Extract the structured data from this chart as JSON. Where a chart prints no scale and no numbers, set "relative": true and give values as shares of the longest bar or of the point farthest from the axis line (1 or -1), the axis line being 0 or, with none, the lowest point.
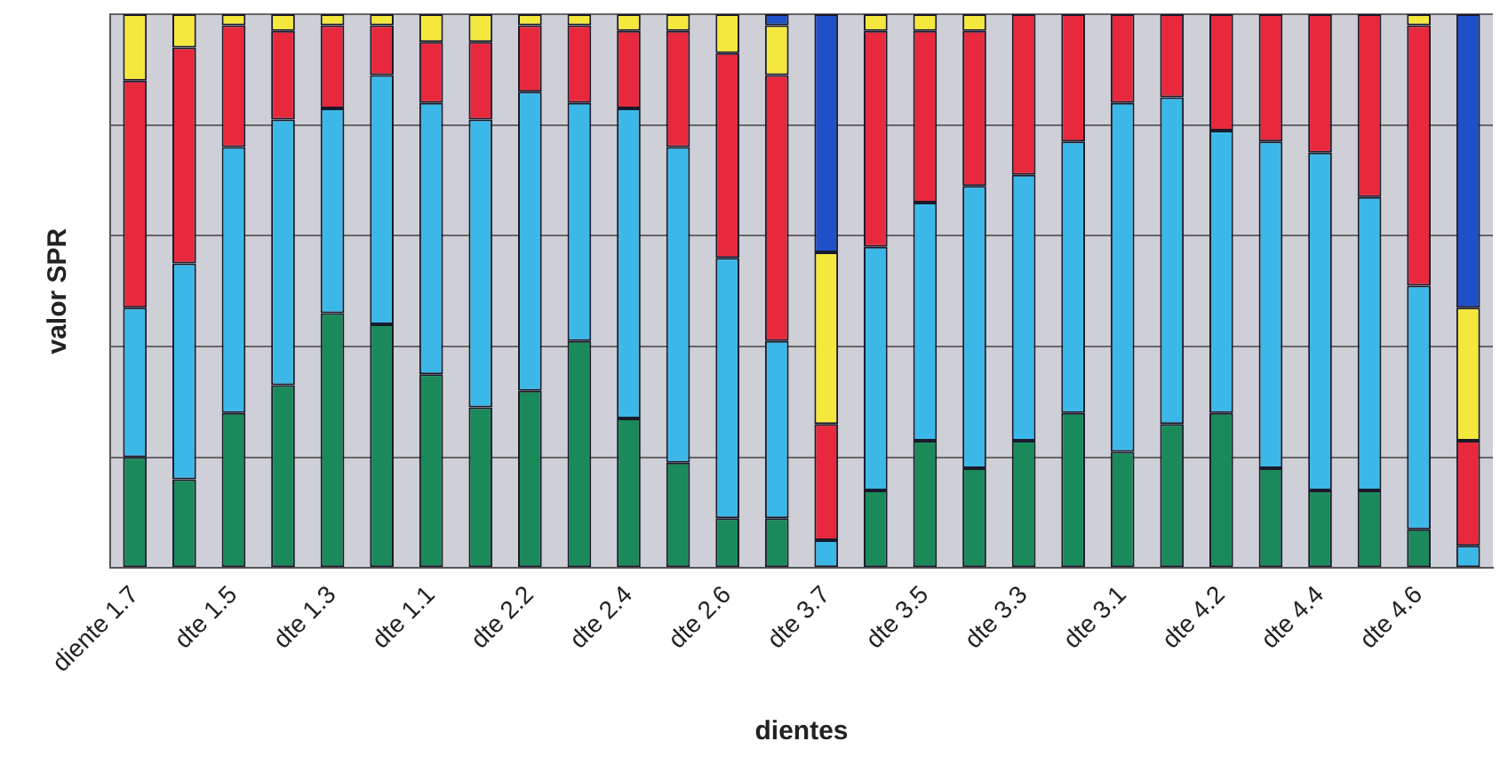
{
  "chart_data": {
    "type": "bar",
    "stacked": true,
    "relative": true,
    "xlabel": "dientes",
    "ylabel": "valor SPR",
    "grid": "y",
    "legend": false,
    "categories": [
      "diente 1.7",
      null,
      "dte 1.5",
      null,
      "dte 1.3",
      null,
      "dte 1.1",
      null,
      "dte 2.2",
      null,
      "dte 2.4",
      null,
      "dte 2.6",
      null,
      "dte 3.7",
      null,
      "dte 3.5",
      null,
      "dte 3.3",
      null,
      "dte 3.1",
      null,
      "dte 4.2",
      null,
      "dte 4.4",
      null,
      "dte 4.6",
      null
    ],
    "series": [
      {
        "color": "#1a8a5a",
        "values": [
          0.2,
          0.16,
          0.28,
          0.33,
          0.46,
          0.44,
          0.35,
          0.29,
          0.32,
          0.41,
          0.27,
          0.19,
          0.09,
          0.09,
          0,
          0.14,
          0.23,
          0.18,
          0.23,
          0.28,
          0.21,
          0.26,
          0.28,
          0.18,
          0.14,
          0.14,
          0.07,
          0
        ]
      },
      {
        "color": "#3cb8e8",
        "values": [
          0.27,
          0.39,
          0.48,
          0.48,
          0.37,
          0.45,
          0.49,
          0.52,
          0.54,
          0.43,
          0.56,
          0.57,
          0.47,
          0.32,
          0.05,
          0.44,
          0.43,
          0.51,
          0.48,
          0.49,
          0.63,
          0.59,
          0.51,
          0.59,
          0.61,
          0.53,
          0.44,
          0.04
        ]
      },
      {
        "color": "#e8283c",
        "values": [
          0.41,
          0.39,
          0.22,
          0.16,
          0.15,
          0.09,
          0.11,
          0.14,
          0.12,
          0.14,
          0.14,
          0.21,
          0.37,
          0.48,
          0.21,
          0.39,
          0.31,
          0.28,
          0.29,
          0.23,
          0.16,
          0.15,
          0.21,
          0.23,
          0.25,
          0.33,
          0.47,
          0.19
        ]
      },
      {
        "color": "#f5e83c",
        "values": [
          0.12,
          0.06,
          0.02,
          0.03,
          0.02,
          0.02,
          0.05,
          0.05,
          0.02,
          0.02,
          0.03,
          0.03,
          0.07,
          0.09,
          0.31,
          0.03,
          0.03,
          0.03,
          0,
          0,
          0,
          0,
          0,
          0,
          0,
          0,
          0.02,
          0.24
        ]
      },
      {
        "color": "#1e50c8",
        "values": [
          0,
          0,
          0,
          0,
          0,
          0,
          0,
          0,
          0,
          0,
          0,
          0,
          0,
          0.02,
          0.43,
          0,
          0,
          0,
          0,
          0,
          0,
          0,
          0,
          0,
          0,
          0,
          0,
          0.53
        ]
      }
    ]
  }
}
